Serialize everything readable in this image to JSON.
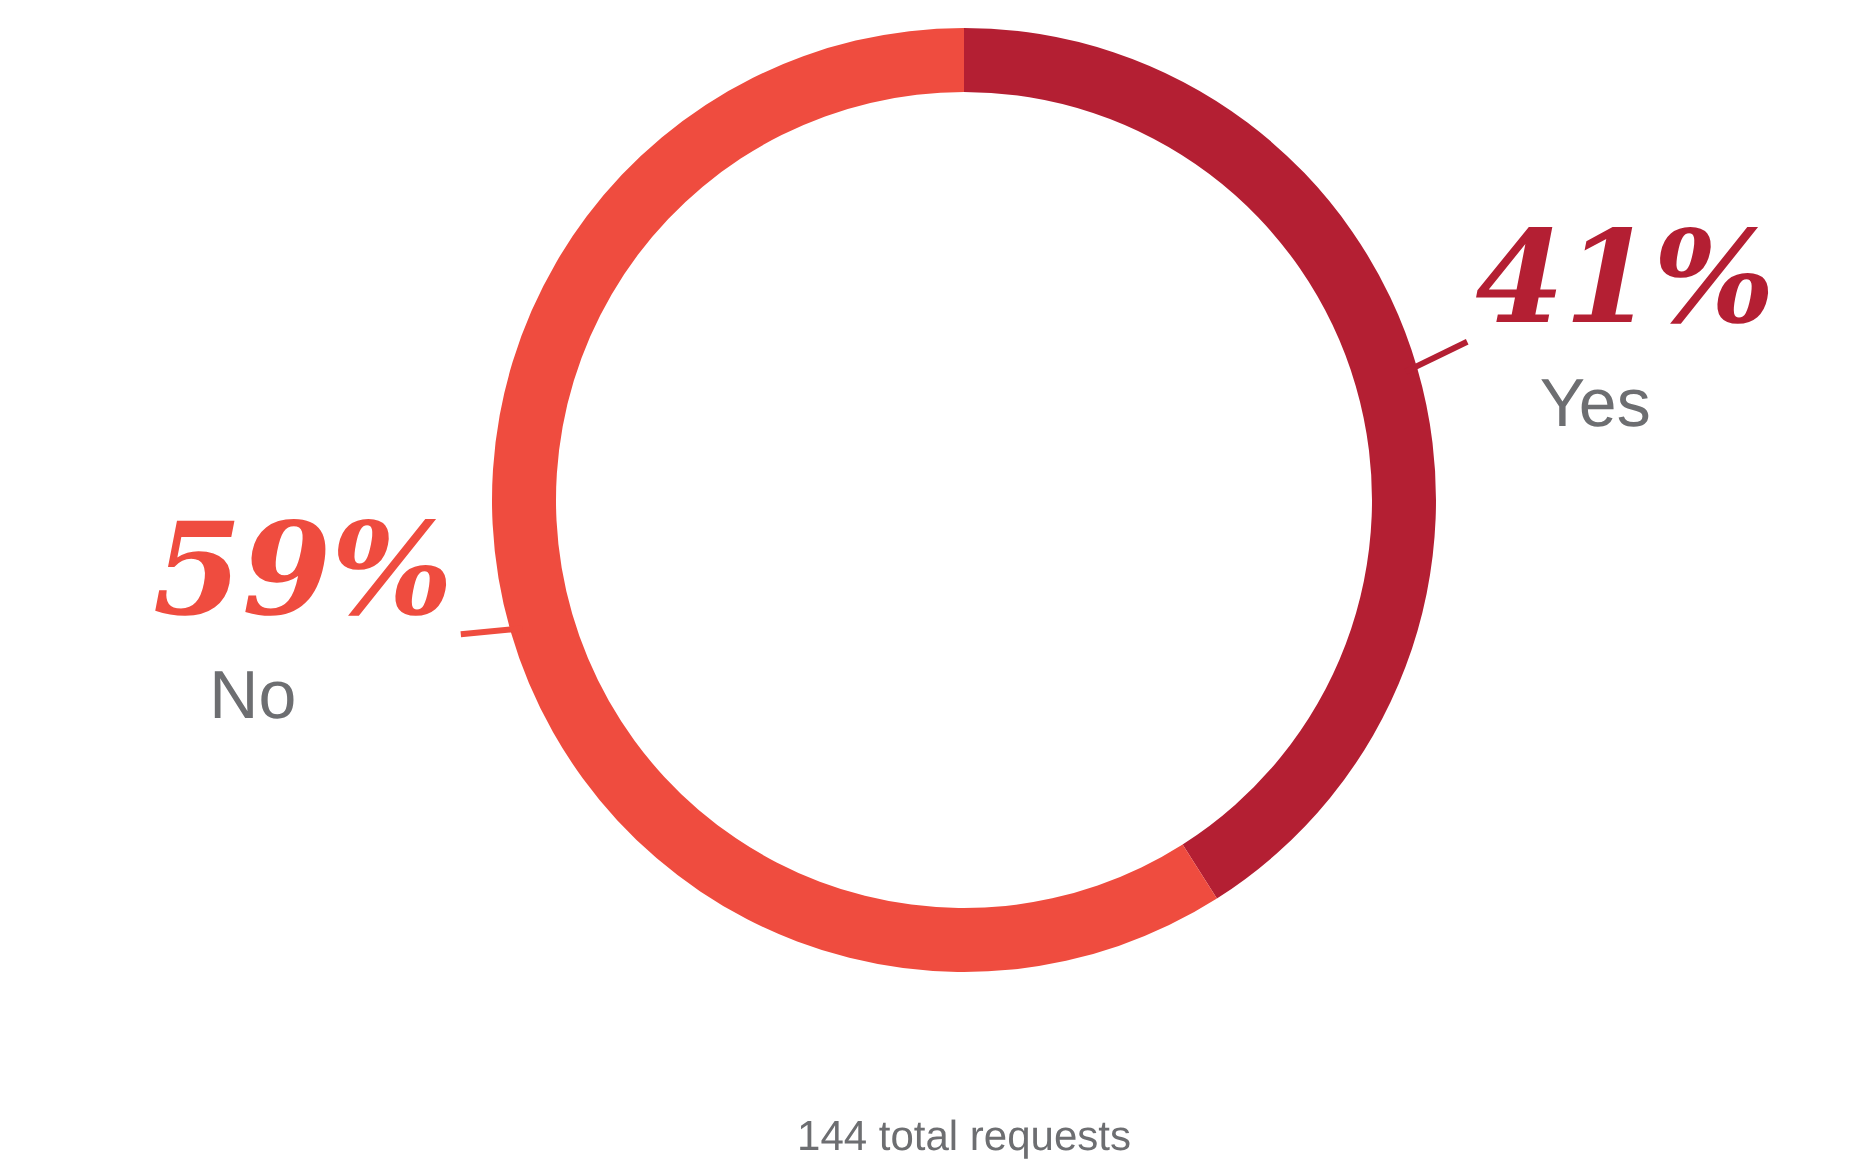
{
  "chart_data": {
    "type": "donut",
    "categories": [
      "Yes",
      "No"
    ],
    "values": [
      41,
      59
    ],
    "colors": [
      "#b41f33",
      "#ef4c3f"
    ],
    "value_labels": [
      "41%",
      "59%"
    ],
    "annotations": [
      "144 total requests"
    ],
    "legend": false
  }
}
